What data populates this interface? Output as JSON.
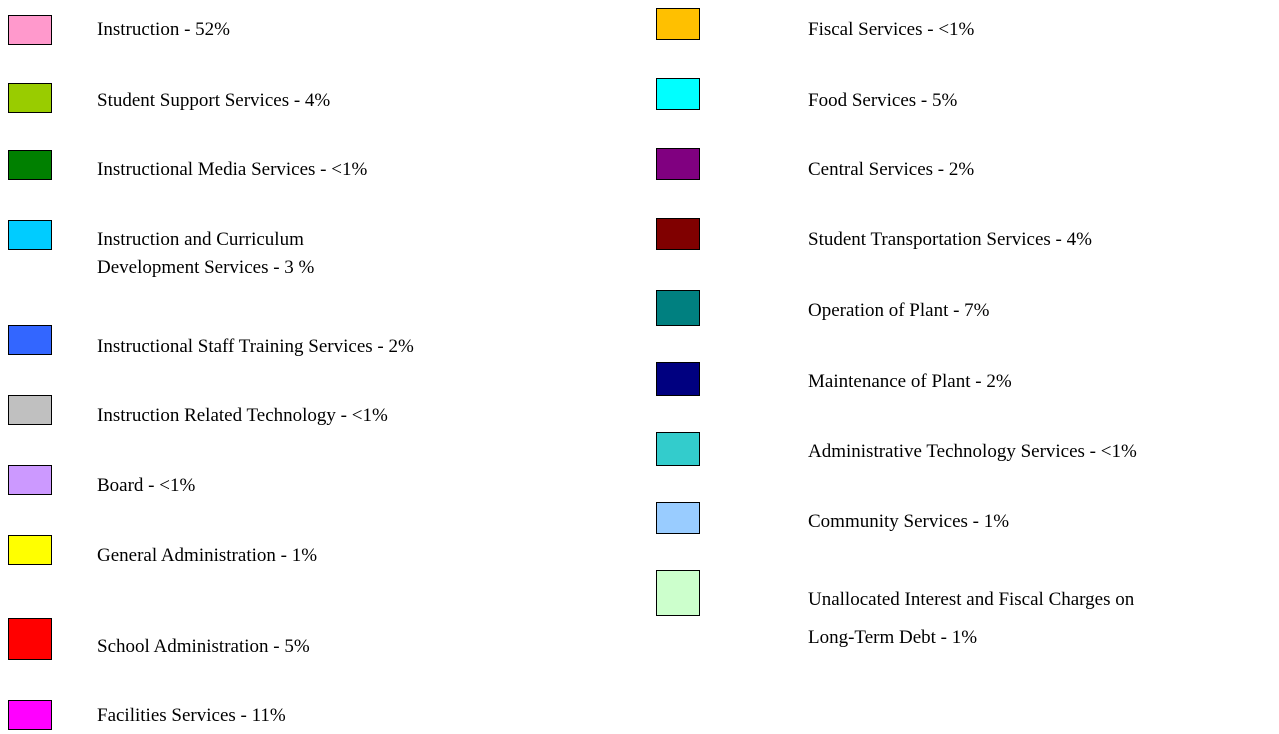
{
  "legend": {
    "left": [
      {
        "lines": [
          "Instruction - 52%"
        ],
        "color": "#ff99cc"
      },
      {
        "lines": [
          "Student Support Services - 4%"
        ],
        "color": "#99cc00"
      },
      {
        "lines": [
          "Instructional Media Services - <1%"
        ],
        "color": "#008000"
      },
      {
        "lines": [
          "Instruction and Curriculum",
          "Development Services - 3 %"
        ],
        "color": "#00ccff"
      },
      {
        "lines": [
          "Instructional Staff Training Services - 2%"
        ],
        "color": "#3366ff"
      },
      {
        "lines": [
          "Instruction Related Technology - <1%"
        ],
        "color": "#c0c0c0"
      },
      {
        "lines": [
          "Board - <1%"
        ],
        "color": "#cc99ff"
      },
      {
        "lines": [
          "General Administration - 1%"
        ],
        "color": "#ffff00"
      },
      {
        "lines": [
          "School Administration - 5%"
        ],
        "color": "#ff0000"
      },
      {
        "lines": [
          "Facilities Services - 11%"
        ],
        "color": "#ff00ff"
      }
    ],
    "right": [
      {
        "lines": [
          "Fiscal Services - <1%"
        ],
        "color": "#ffc000"
      },
      {
        "lines": [
          "Food Services - 5%"
        ],
        "color": "#00ffff"
      },
      {
        "lines": [
          "Central Services - 2%"
        ],
        "color": "#800080"
      },
      {
        "lines": [
          "Student Transportation Services - 4%"
        ],
        "color": "#800000"
      },
      {
        "lines": [
          "Operation of Plant - 7%"
        ],
        "color": "#008080"
      },
      {
        "lines": [
          "Maintenance of Plant - 2%"
        ],
        "color": "#000080"
      },
      {
        "lines": [
          "Administrative Technology Services - <1%"
        ],
        "color": "#33cccc"
      },
      {
        "lines": [
          "Community Services - 1%"
        ],
        "color": "#99ccff"
      },
      {
        "lines": [
          "Unallocated Interest and Fiscal Charges on",
          "Long-Term Debt - 1%"
        ],
        "color": "#ccffcc"
      }
    ]
  }
}
